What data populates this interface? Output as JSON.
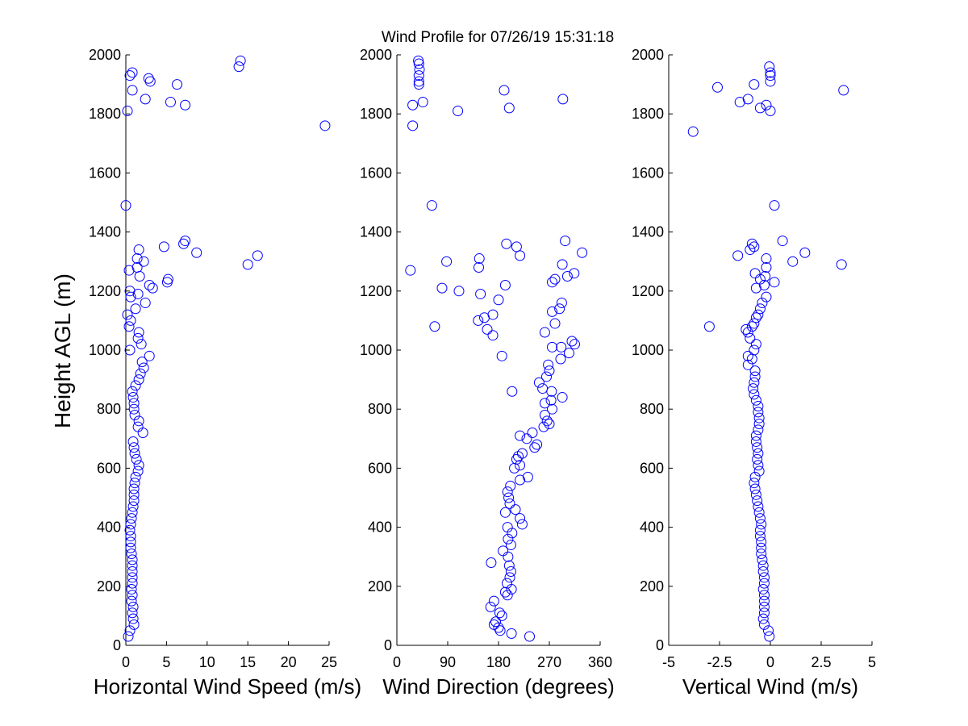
{
  "figure": {
    "title": "Wind Profile for  07/26/19 15:31:18",
    "ylabel": "Height AGL (m)"
  },
  "chart_data": [
    {
      "type": "scatter",
      "xlabel": "Horizontal Wind Speed (m/s)",
      "ylabel": "Height AGL (m)",
      "xlim": [
        0,
        25
      ],
      "ylim": [
        0,
        2000
      ],
      "xticks": [
        0,
        5,
        10,
        15,
        20,
        25
      ],
      "xtick_labels": [
        "0",
        "5",
        "10",
        "15",
        "20",
        "25"
      ],
      "yticks": [
        0,
        200,
        400,
        600,
        800,
        1000,
        1200,
        1400,
        1600,
        1800,
        2000
      ],
      "ytick_labels": [
        "0",
        "200",
        "400",
        "600",
        "800",
        "1000",
        "1200",
        "1400",
        "1600",
        "1800",
        "2000"
      ],
      "grid": false,
      "marker": "open-circle",
      "color": "#0000ff",
      "points": [
        [
          0.3,
          30
        ],
        [
          0.5,
          50
        ],
        [
          1.0,
          70
        ],
        [
          0.9,
          90
        ],
        [
          0.8,
          110
        ],
        [
          0.9,
          130
        ],
        [
          0.7,
          150
        ],
        [
          0.8,
          170
        ],
        [
          0.7,
          190
        ],
        [
          0.8,
          210
        ],
        [
          0.8,
          230
        ],
        [
          0.8,
          250
        ],
        [
          0.8,
          270
        ],
        [
          0.8,
          290
        ],
        [
          0.7,
          310
        ],
        [
          0.6,
          330
        ],
        [
          0.6,
          350
        ],
        [
          0.6,
          370
        ],
        [
          0.5,
          390
        ],
        [
          0.6,
          410
        ],
        [
          0.7,
          430
        ],
        [
          0.8,
          450
        ],
        [
          0.9,
          470
        ],
        [
          1.0,
          490
        ],
        [
          1.0,
          510
        ],
        [
          1.0,
          530
        ],
        [
          1.1,
          550
        ],
        [
          1.2,
          570
        ],
        [
          1.5,
          590
        ],
        [
          1.6,
          610
        ],
        [
          1.3,
          630
        ],
        [
          1.1,
          650
        ],
        [
          1.0,
          670
        ],
        [
          0.9,
          690
        ],
        [
          2.1,
          720
        ],
        [
          1.5,
          740
        ],
        [
          1.6,
          760
        ],
        [
          1.1,
          780
        ],
        [
          1.0,
          800
        ],
        [
          1.0,
          820
        ],
        [
          0.9,
          840
        ],
        [
          0.8,
          860
        ],
        [
          1.2,
          880
        ],
        [
          1.6,
          900
        ],
        [
          1.8,
          920
        ],
        [
          2.2,
          940
        ],
        [
          2.0,
          960
        ],
        [
          2.9,
          980
        ],
        [
          0.5,
          1000
        ],
        [
          1.9,
          1020
        ],
        [
          1.5,
          1040
        ],
        [
          1.6,
          1060
        ],
        [
          0.4,
          1080
        ],
        [
          0.6,
          1100
        ],
        [
          0.2,
          1120
        ],
        [
          1.2,
          1140
        ],
        [
          2.4,
          1160
        ],
        [
          0.6,
          1180
        ],
        [
          1.5,
          1190
        ],
        [
          0.5,
          1200
        ],
        [
          3.3,
          1210
        ],
        [
          2.9,
          1220
        ],
        [
          5.1,
          1230
        ],
        [
          5.2,
          1240
        ],
        [
          1.7,
          1250
        ],
        [
          0.4,
          1270
        ],
        [
          1.4,
          1280
        ],
        [
          15.0,
          1290
        ],
        [
          2.2,
          1300
        ],
        [
          1.4,
          1310
        ],
        [
          16.2,
          1320
        ],
        [
          8.7,
          1330
        ],
        [
          1.6,
          1340
        ],
        [
          4.7,
          1350
        ],
        [
          7.1,
          1360
        ],
        [
          7.3,
          1370
        ],
        [
          0.0,
          1490
        ],
        [
          24.5,
          1760
        ],
        [
          0.2,
          1810
        ],
        [
          7.3,
          1830
        ],
        [
          5.5,
          1840
        ],
        [
          2.4,
          1850
        ],
        [
          0.8,
          1880
        ],
        [
          6.3,
          1900
        ],
        [
          3.0,
          1910
        ],
        [
          2.8,
          1920
        ],
        [
          0.5,
          1930
        ],
        [
          0.8,
          1940
        ],
        [
          13.9,
          1960
        ],
        [
          14.1,
          1980
        ]
      ]
    },
    {
      "type": "scatter",
      "xlabel": "Wind Direction (degrees)",
      "ylabel": "",
      "xlim": [
        0,
        360
      ],
      "ylim": [
        0,
        2000
      ],
      "xticks": [
        0,
        90,
        180,
        270,
        360
      ],
      "xtick_labels": [
        "0",
        "90",
        "180",
        "270",
        "360"
      ],
      "yticks": [
        0,
        200,
        400,
        600,
        800,
        1000,
        1200,
        1400,
        1600,
        1800,
        2000
      ],
      "ytick_labels": [
        "0",
        "200",
        "400",
        "600",
        "800",
        "1000",
        "1200",
        "1400",
        "1600",
        "1800",
        "2000"
      ],
      "grid": false,
      "marker": "open-circle",
      "color": "#0000ff",
      "points": [
        [
          235,
          30
        ],
        [
          203,
          40
        ],
        [
          183,
          50
        ],
        [
          180,
          60
        ],
        [
          172,
          70
        ],
        [
          175,
          80
        ],
        [
          186,
          100
        ],
        [
          182,
          110
        ],
        [
          166,
          130
        ],
        [
          172,
          150
        ],
        [
          196,
          170
        ],
        [
          192,
          180
        ],
        [
          203,
          190
        ],
        [
          195,
          210
        ],
        [
          200,
          230
        ],
        [
          202,
          250
        ],
        [
          199,
          270
        ],
        [
          167,
          280
        ],
        [
          197,
          300
        ],
        [
          188,
          320
        ],
        [
          202,
          340
        ],
        [
          197,
          360
        ],
        [
          204,
          380
        ],
        [
          196,
          400
        ],
        [
          222,
          410
        ],
        [
          218,
          430
        ],
        [
          192,
          450
        ],
        [
          210,
          460
        ],
        [
          200,
          480
        ],
        [
          198,
          500
        ],
        [
          196,
          520
        ],
        [
          201,
          540
        ],
        [
          218,
          560
        ],
        [
          232,
          570
        ],
        [
          208,
          600
        ],
        [
          218,
          610
        ],
        [
          212,
          630
        ],
        [
          215,
          640
        ],
        [
          222,
          650
        ],
        [
          244,
          670
        ],
        [
          248,
          680
        ],
        [
          230,
          700
        ],
        [
          240,
          720
        ],
        [
          218,
          710
        ],
        [
          260,
          740
        ],
        [
          270,
          750
        ],
        [
          266,
          760
        ],
        [
          262,
          780
        ],
        [
          275,
          800
        ],
        [
          262,
          820
        ],
        [
          273,
          830
        ],
        [
          293,
          840
        ],
        [
          274,
          860
        ],
        [
          204,
          860
        ],
        [
          258,
          870
        ],
        [
          252,
          890
        ],
        [
          265,
          910
        ],
        [
          270,
          930
        ],
        [
          268,
          950
        ],
        [
          290,
          970
        ],
        [
          186,
          980
        ],
        [
          305,
          990
        ],
        [
          275,
          1010
        ],
        [
          291,
          1010
        ],
        [
          315,
          1020
        ],
        [
          310,
          1030
        ],
        [
          170,
          1050
        ],
        [
          160,
          1070
        ],
        [
          67,
          1080
        ],
        [
          262,
          1060
        ],
        [
          280,
          1090
        ],
        [
          144,
          1100
        ],
        [
          155,
          1110
        ],
        [
          170,
          1120
        ],
        [
          275,
          1130
        ],
        [
          288,
          1140
        ],
        [
          292,
          1160
        ],
        [
          180,
          1170
        ],
        [
          80,
          1210
        ],
        [
          110,
          1200
        ],
        [
          148,
          1190
        ],
        [
          192,
          1220
        ],
        [
          275,
          1230
        ],
        [
          280,
          1240
        ],
        [
          302,
          1250
        ],
        [
          314,
          1260
        ],
        [
          24,
          1270
        ],
        [
          145,
          1280
        ],
        [
          293,
          1290
        ],
        [
          88,
          1300
        ],
        [
          146,
          1310
        ],
        [
          218,
          1320
        ],
        [
          328,
          1330
        ],
        [
          212,
          1350
        ],
        [
          298,
          1370
        ],
        [
          194,
          1360
        ],
        [
          62,
          1490
        ],
        [
          28,
          1760
        ],
        [
          108,
          1810
        ],
        [
          28,
          1830
        ],
        [
          46,
          1840
        ],
        [
          294,
          1850
        ],
        [
          199,
          1820
        ],
        [
          190,
          1880
        ],
        [
          39,
          1900
        ],
        [
          39,
          1910
        ],
        [
          39,
          1930
        ],
        [
          40,
          1950
        ],
        [
          39,
          1970
        ],
        [
          38,
          1980
        ]
      ]
    },
    {
      "type": "scatter",
      "xlabel": "Vertical Wind (m/s)",
      "ylabel": "",
      "xlim": [
        -5,
        5
      ],
      "ylim": [
        0,
        2000
      ],
      "xticks": [
        -5,
        -2.5,
        0,
        2.5,
        5
      ],
      "xtick_labels": [
        "-5",
        "-2.5",
        "0",
        "2.5",
        "5"
      ],
      "yticks": [
        0,
        200,
        400,
        600,
        800,
        1000,
        1200,
        1400,
        1600,
        1800,
        2000
      ],
      "ytick_labels": [
        "0",
        "200",
        "400",
        "600",
        "800",
        "1000",
        "1200",
        "1400",
        "1600",
        "1800",
        "2000"
      ],
      "grid": false,
      "marker": "open-circle",
      "color": "#0000ff",
      "points": [
        [
          -0.05,
          30
        ],
        [
          -0.1,
          50
        ],
        [
          -0.3,
          70
        ],
        [
          -0.35,
          90
        ],
        [
          -0.3,
          110
        ],
        [
          -0.3,
          130
        ],
        [
          -0.3,
          150
        ],
        [
          -0.3,
          170
        ],
        [
          -0.35,
          190
        ],
        [
          -0.3,
          210
        ],
        [
          -0.3,
          230
        ],
        [
          -0.35,
          250
        ],
        [
          -0.35,
          270
        ],
        [
          -0.4,
          290
        ],
        [
          -0.45,
          310
        ],
        [
          -0.45,
          330
        ],
        [
          -0.45,
          350
        ],
        [
          -0.5,
          370
        ],
        [
          -0.5,
          390
        ],
        [
          -0.45,
          410
        ],
        [
          -0.5,
          430
        ],
        [
          -0.55,
          450
        ],
        [
          -0.6,
          470
        ],
        [
          -0.65,
          490
        ],
        [
          -0.7,
          510
        ],
        [
          -0.75,
          530
        ],
        [
          -0.8,
          550
        ],
        [
          -0.75,
          570
        ],
        [
          -0.55,
          590
        ],
        [
          -0.6,
          610
        ],
        [
          -0.65,
          630
        ],
        [
          -0.6,
          650
        ],
        [
          -0.65,
          670
        ],
        [
          -0.7,
          690
        ],
        [
          -0.7,
          710
        ],
        [
          -0.6,
          730
        ],
        [
          -0.55,
          750
        ],
        [
          -0.55,
          770
        ],
        [
          -0.6,
          790
        ],
        [
          -0.6,
          810
        ],
        [
          -0.7,
          830
        ],
        [
          -0.8,
          850
        ],
        [
          -0.85,
          870
        ],
        [
          -0.8,
          890
        ],
        [
          -0.75,
          910
        ],
        [
          -0.75,
          930
        ],
        [
          -1.1,
          950
        ],
        [
          -0.9,
          970
        ],
        [
          -1.1,
          980
        ],
        [
          -0.8,
          1000
        ],
        [
          -0.7,
          1020
        ],
        [
          -1.0,
          1040
        ],
        [
          -1.1,
          1060
        ],
        [
          -1.2,
          1070
        ],
        [
          -0.9,
          1080
        ],
        [
          -0.8,
          1090
        ],
        [
          -0.7,
          1110
        ],
        [
          -0.6,
          1120
        ],
        [
          -0.5,
          1140
        ],
        [
          -0.4,
          1160
        ],
        [
          -0.2,
          1180
        ],
        [
          -0.7,
          1210
        ],
        [
          -0.3,
          1220
        ],
        [
          0.2,
          1230
        ],
        [
          -0.5,
          1240
        ],
        [
          -0.25,
          1250
        ],
        [
          -0.75,
          1260
        ],
        [
          -0.2,
          1280
        ],
        [
          3.5,
          1290
        ],
        [
          1.1,
          1300
        ],
        [
          -0.2,
          1310
        ],
        [
          -1.6,
          1320
        ],
        [
          1.7,
          1330
        ],
        [
          -1.0,
          1340
        ],
        [
          -0.8,
          1350
        ],
        [
          -0.9,
          1360
        ],
        [
          0.6,
          1370
        ],
        [
          -3.0,
          1080
        ],
        [
          0.2,
          1490
        ],
        [
          -3.8,
          1740
        ],
        [
          0.0,
          1810
        ],
        [
          -0.5,
          1820
        ],
        [
          -0.2,
          1830
        ],
        [
          -1.5,
          1840
        ],
        [
          -1.1,
          1850
        ],
        [
          3.6,
          1880
        ],
        [
          -2.6,
          1890
        ],
        [
          -0.8,
          1900
        ],
        [
          0.0,
          1910
        ],
        [
          0.0,
          1930
        ],
        [
          0.0,
          1940
        ],
        [
          -0.05,
          1960
        ]
      ]
    }
  ]
}
